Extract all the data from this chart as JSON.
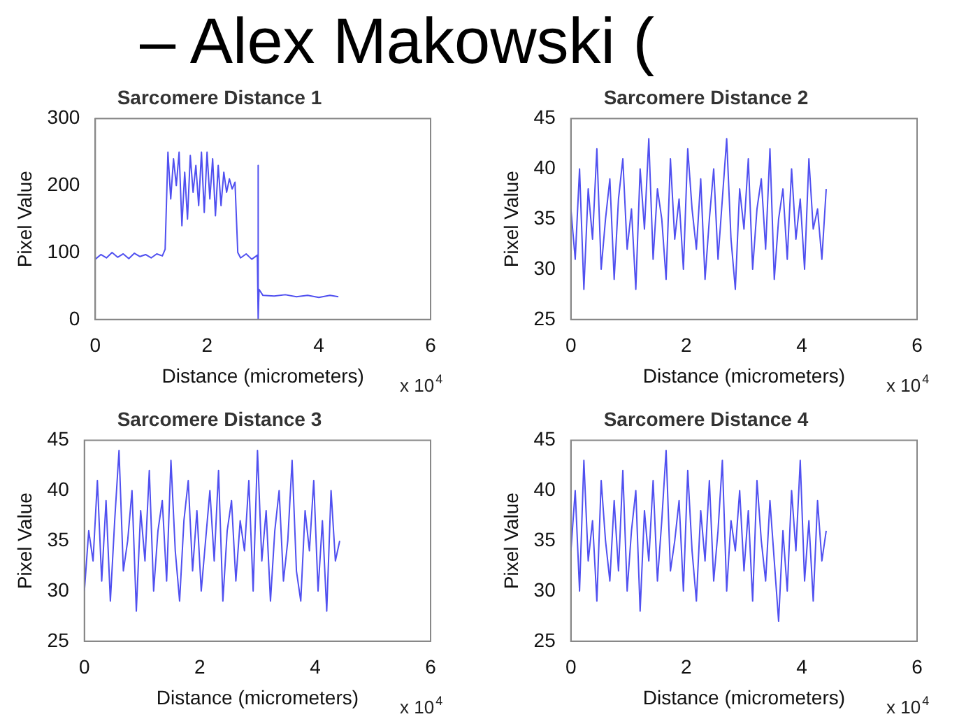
{
  "chart_data": [
    {
      "type": "line",
      "title": "Sarcomere Distance 1",
      "xlabel": "Distance (micrometers)",
      "ylabel": "Pixel Value",
      "annotations": [
        "– Alex Makowski (",
        "x 10$^{4}$"
      ],
      "x": [
        0,
        0.1,
        0.2,
        0.3,
        0.4,
        0.5,
        0.6,
        0.7,
        0.8,
        0.9,
        1.0,
        1.1,
        1.2,
        1.25,
        1.3,
        1.35,
        1.4,
        1.45,
        1.5,
        1.55,
        1.6,
        1.65,
        1.7,
        1.75,
        1.8,
        1.85,
        1.9,
        1.95,
        2.0,
        2.05,
        2.1,
        2.15,
        2.2,
        2.25,
        2.3,
        2.35,
        2.4,
        2.45,
        2.5,
        2.55,
        2.6,
        2.7,
        2.8,
        2.9,
        2.91,
        2.92,
        2.93,
        3.0,
        3.2,
        3.4,
        3.6,
        3.8,
        4.0,
        4.2,
        4.35
      ],
      "series": [
        {
          "color": "#5050f0",
          "values": [
            90,
            97,
            92,
            100,
            93,
            98,
            91,
            99,
            94,
            97,
            92,
            98,
            95,
            105,
            250,
            180,
            240,
            200,
            250,
            140,
            220,
            150,
            245,
            190,
            230,
            170,
            250,
            160,
            250,
            180,
            240,
            155,
            230,
            170,
            220,
            190,
            210,
            195,
            205,
            100,
            92,
            98,
            90,
            96,
            230,
            0,
            45,
            36,
            35,
            37,
            34,
            36,
            33,
            36,
            34
          ]
        }
      ],
      "xlim": [
        0,
        6
      ],
      "xticks": [
        0,
        2,
        4,
        6
      ],
      "ylim": [
        0,
        300
      ],
      "yticks": [
        0,
        100,
        200,
        300
      ],
      "marker": "none",
      "grid": false,
      "legend": false
    },
    {
      "type": "line",
      "title": "Sarcomere Distance 2",
      "xlabel": "Distance (micrometers)",
      "ylabel": "Pixel Value",
      "annotations": [
        "x 10$^{4}$"
      ],
      "x": [
        0,
        0.075,
        0.15,
        0.225,
        0.3,
        0.375,
        0.45,
        0.525,
        0.6,
        0.675,
        0.75,
        0.825,
        0.9,
        0.975,
        1.05,
        1.125,
        1.2,
        1.275,
        1.35,
        1.425,
        1.5,
        1.575,
        1.65,
        1.725,
        1.8,
        1.875,
        1.95,
        2.025,
        2.1,
        2.175,
        2.25,
        2.325,
        2.4,
        2.475,
        2.55,
        2.625,
        2.7,
        2.775,
        2.85,
        2.925,
        3.0,
        3.075,
        3.15,
        3.225,
        3.3,
        3.375,
        3.45,
        3.525,
        3.6,
        3.675,
        3.75,
        3.825,
        3.9,
        3.975,
        4.05,
        4.125,
        4.2,
        4.275,
        4.35,
        4.425
      ],
      "series": [
        {
          "color": "#5050f0",
          "values": [
            36,
            31,
            40,
            28,
            38,
            33,
            42,
            30,
            35,
            39,
            29,
            37,
            41,
            32,
            36,
            28,
            40,
            34,
            43,
            31,
            38,
            35,
            29,
            41,
            33,
            37,
            30,
            42,
            36,
            32,
            39,
            29,
            35,
            40,
            31,
            37,
            43,
            33,
            28,
            38,
            34,
            41,
            30,
            36,
            39,
            32,
            42,
            29,
            35,
            38,
            31,
            40,
            33,
            37,
            30,
            41,
            34,
            36,
            31,
            38
          ]
        }
      ],
      "xlim": [
        0,
        6
      ],
      "xticks": [
        0,
        2,
        4,
        6
      ],
      "ylim": [
        25,
        45
      ],
      "yticks": [
        25,
        30,
        35,
        40,
        45
      ],
      "marker": "none",
      "grid": false,
      "legend": false
    },
    {
      "type": "line",
      "title": "Sarcomere Distance 3",
      "xlabel": "Distance (micrometers)",
      "ylabel": "Pixel Value",
      "annotations": [
        "x 10$^{4}$"
      ],
      "x": [
        0,
        0.075,
        0.15,
        0.225,
        0.3,
        0.375,
        0.45,
        0.525,
        0.6,
        0.675,
        0.75,
        0.825,
        0.9,
        0.975,
        1.05,
        1.125,
        1.2,
        1.275,
        1.35,
        1.425,
        1.5,
        1.575,
        1.65,
        1.725,
        1.8,
        1.875,
        1.95,
        2.025,
        2.1,
        2.175,
        2.25,
        2.325,
        2.4,
        2.475,
        2.55,
        2.625,
        2.7,
        2.775,
        2.85,
        2.925,
        3.0,
        3.075,
        3.15,
        3.225,
        3.3,
        3.375,
        3.45,
        3.525,
        3.6,
        3.675,
        3.75,
        3.825,
        3.9,
        3.975,
        4.05,
        4.125,
        4.2,
        4.275,
        4.35,
        4.425
      ],
      "series": [
        {
          "color": "#5050f0",
          "values": [
            30,
            36,
            33,
            41,
            31,
            39,
            29,
            37,
            44,
            32,
            35,
            40,
            28,
            38,
            33,
            42,
            30,
            36,
            39,
            31,
            43,
            34,
            29,
            37,
            41,
            32,
            38,
            30,
            35,
            40,
            33,
            42,
            29,
            36,
            39,
            31,
            37,
            34,
            41,
            30,
            44,
            33,
            38,
            29,
            36,
            40,
            31,
            35,
            43,
            32,
            29,
            38,
            34,
            41,
            30,
            37,
            28,
            40,
            33,
            35
          ]
        }
      ],
      "xlim": [
        0,
        6
      ],
      "xticks": [
        0,
        2,
        4,
        6
      ],
      "ylim": [
        25,
        45
      ],
      "yticks": [
        25,
        30,
        35,
        40,
        45
      ],
      "marker": "none",
      "grid": false,
      "legend": false
    },
    {
      "type": "line",
      "title": "Sarcomere Distance 4",
      "xlabel": "Distance (micrometers)",
      "ylabel": "Pixel Value",
      "annotations": [
        "x 10$^{4}$"
      ],
      "x": [
        0,
        0.075,
        0.15,
        0.225,
        0.3,
        0.375,
        0.45,
        0.525,
        0.6,
        0.675,
        0.75,
        0.825,
        0.9,
        0.975,
        1.05,
        1.125,
        1.2,
        1.275,
        1.35,
        1.425,
        1.5,
        1.575,
        1.65,
        1.725,
        1.8,
        1.875,
        1.95,
        2.025,
        2.1,
        2.175,
        2.25,
        2.325,
        2.4,
        2.475,
        2.55,
        2.625,
        2.7,
        2.775,
        2.85,
        2.925,
        3.0,
        3.075,
        3.15,
        3.225,
        3.3,
        3.375,
        3.45,
        3.525,
        3.6,
        3.675,
        3.75,
        3.825,
        3.9,
        3.975,
        4.05,
        4.125,
        4.2,
        4.275,
        4.35,
        4.425
      ],
      "series": [
        {
          "color": "#5050f0",
          "values": [
            34,
            40,
            30,
            43,
            33,
            37,
            29,
            41,
            35,
            31,
            39,
            32,
            42,
            30,
            36,
            40,
            28,
            38,
            33,
            41,
            31,
            37,
            44,
            32,
            35,
            39,
            30,
            42,
            34,
            29,
            38,
            33,
            41,
            31,
            36,
            43,
            30,
            37,
            34,
            40,
            32,
            38,
            29,
            41,
            35,
            31,
            39,
            33,
            27,
            36,
            30,
            40,
            34,
            43,
            31,
            37,
            29,
            39,
            33,
            36
          ]
        }
      ],
      "xlim": [
        0,
        6
      ],
      "xticks": [
        0,
        2,
        4,
        6
      ],
      "ylim": [
        25,
        45
      ],
      "yticks": [
        25,
        30,
        35,
        40,
        45
      ],
      "marker": "none",
      "grid": false,
      "legend": false
    }
  ]
}
